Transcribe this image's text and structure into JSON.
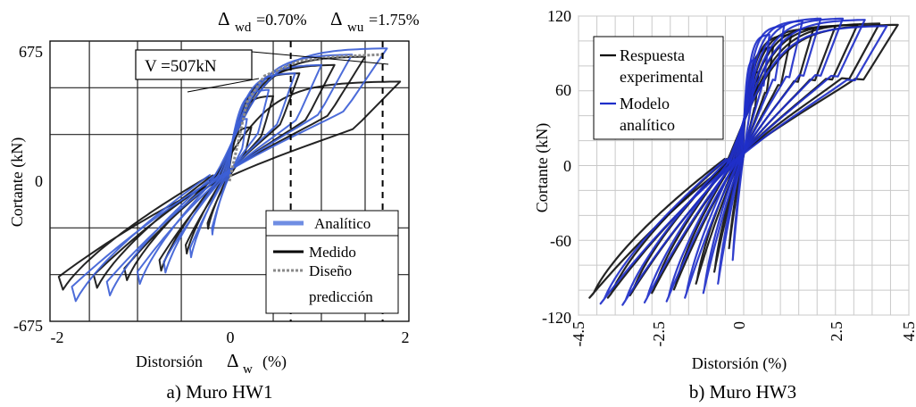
{
  "chart_data": [
    {
      "type": "line",
      "title": "",
      "caption": "a) Muro HW1",
      "xlabel_main": "Distorsión",
      "xlabel_symbol": "Δ",
      "xlabel_sub": "w",
      "xlabel_unit": "(%)",
      "ylabel": "Cortante (kN)",
      "xlim": [
        -2.05,
        2.05
      ],
      "ylim": [
        -675,
        675
      ],
      "xticks": [
        "-2",
        "0",
        "2"
      ],
      "xtick_values": [
        -2,
        0,
        2
      ],
      "yticks": [
        "675",
        "0",
        "-675"
      ],
      "ytick_values": [
        675,
        0,
        -675
      ],
      "grid": true,
      "annotations": {
        "delta_wd": {
          "sym": "Δ",
          "sub": "wd",
          "text": "=0.70%",
          "x": 0.7
        },
        "delta_wu": {
          "sym": "Δ",
          "sub": "wu",
          "text": "=1.75%",
          "x": 1.75
        },
        "v_callout": "V  =507kN",
        "v_value": 507
      },
      "legend": {
        "position": "bottom-right",
        "entries": [
          {
            "label": "Analítico",
            "color": "#6f8de3",
            "style": "thick"
          },
          {
            "label": "Medido",
            "color": "#000000",
            "style": "solid"
          },
          {
            "label": "Diseño",
            "label2": "predicción",
            "color": "#8a8a8a",
            "style": "dotted"
          }
        ]
      },
      "series": [
        {
          "name": "Medido",
          "color": "#111111",
          "peaks": [
            0.25,
            0.5,
            0.8,
            1.2,
            1.55,
            1.95
          ],
          "vmax": [
            260,
            410,
            520,
            560,
            600,
            480
          ],
          "vmin": [
            -250,
            -380,
            -470,
            -520,
            -560,
            -570
          ]
        },
        {
          "name": "Analítico",
          "color": "#3d5fd6",
          "peaks": [
            0.2,
            0.45,
            0.75,
            1.05,
            1.4,
            1.8
          ],
          "vmax": [
            300,
            440,
            520,
            560,
            610,
            640
          ],
          "vmin": [
            -280,
            -400,
            -480,
            -540,
            -600,
            -630
          ]
        }
      ],
      "design_prediction": {
        "x": [
          0,
          0.2,
          0.4,
          0.8,
          1.2,
          1.75
        ],
        "y": [
          0,
          380,
          507,
          580,
          600,
          610
        ]
      }
    },
    {
      "type": "line",
      "title": "",
      "caption": "b) Muro HW3",
      "xlabel": "Distorsión (%)",
      "ylabel": "Cortante (kN)",
      "xlim": [
        -4.5,
        4.5
      ],
      "ylim": [
        -120,
        120
      ],
      "xticks": [
        "-4.5",
        "-2.5",
        "0",
        "2.5",
        "4.5"
      ],
      "xtick_values": [
        -4.5,
        -2.5,
        0,
        2.5,
        4.5
      ],
      "yticks": [
        "120",
        "60",
        "0",
        "-60",
        "-120"
      ],
      "ytick_values": [
        120,
        60,
        0,
        -60,
        -120
      ],
      "grid": true,
      "legend": {
        "position": "top-left",
        "entries": [
          {
            "label": "Respuesta",
            "label2": "experimental",
            "color": "#000000"
          },
          {
            "label": "Modelo",
            "label2": "analítico",
            "color": "#1f2fc9"
          }
        ]
      },
      "series": [
        {
          "name": "Respuesta experimental",
          "color": "#111111",
          "peaks": [
            0.4,
            0.8,
            1.3,
            1.9,
            2.5,
            3.1,
            3.7,
            4.2
          ],
          "vmax": [
            75,
            95,
            105,
            110,
            112,
            113,
            114,
            113
          ],
          "vmin": [
            -70,
            -90,
            -100,
            -105,
            -108,
            -110,
            -112,
            -112
          ]
        },
        {
          "name": "Modelo analítico",
          "color": "#1f2fc9",
          "peaks": [
            0.3,
            0.7,
            1.1,
            1.6,
            2.1,
            2.7,
            3.3,
            3.9
          ],
          "vmax": [
            85,
            105,
            112,
            116,
            118,
            118,
            117,
            112
          ],
          "vmin": [
            -80,
            -100,
            -108,
            -112,
            -115,
            -116,
            -118,
            -117
          ]
        }
      ]
    }
  ]
}
